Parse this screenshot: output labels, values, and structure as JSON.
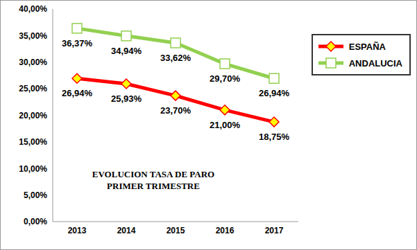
{
  "chart_data": {
    "type": "line",
    "title": "EVOLUCION TASA DE PARO\nPRIMER TRIMESTRE",
    "categories": [
      "2013",
      "2014",
      "2015",
      "2016",
      "2017"
    ],
    "series": [
      {
        "name": "ESPAÑA",
        "color": "#ff0000",
        "marker": "diamond",
        "values": [
          26.94,
          25.93,
          23.7,
          21.0,
          18.75
        ],
        "value_labels": [
          "26,94%",
          "25,93%",
          "23,70%",
          "21,00%",
          "18,75%"
        ]
      },
      {
        "name": "ANDALUCIA",
        "color": "#92d050",
        "marker": "square",
        "values": [
          36.37,
          34.94,
          33.62,
          29.7,
          26.94
        ],
        "value_labels": [
          "36,37%",
          "34,94%",
          "33,62%",
          "29,70%",
          "26,94%"
        ]
      }
    ],
    "ylim": [
      0,
      40
    ],
    "yticks": [
      {
        "value": 0,
        "label": "0,00%"
      },
      {
        "value": 5,
        "label": "5,00%"
      },
      {
        "value": 10,
        "label": "10,00%"
      },
      {
        "value": 15,
        "label": "15,00%"
      },
      {
        "value": 20,
        "label": "20,00%"
      },
      {
        "value": 25,
        "label": "25,00%"
      },
      {
        "value": 30,
        "label": "30,00%"
      },
      {
        "value": 35,
        "label": "35,00%"
      },
      {
        "value": 40,
        "label": "40,00%"
      }
    ],
    "grid": false,
    "legend": "upper right",
    "data_labels": true
  }
}
